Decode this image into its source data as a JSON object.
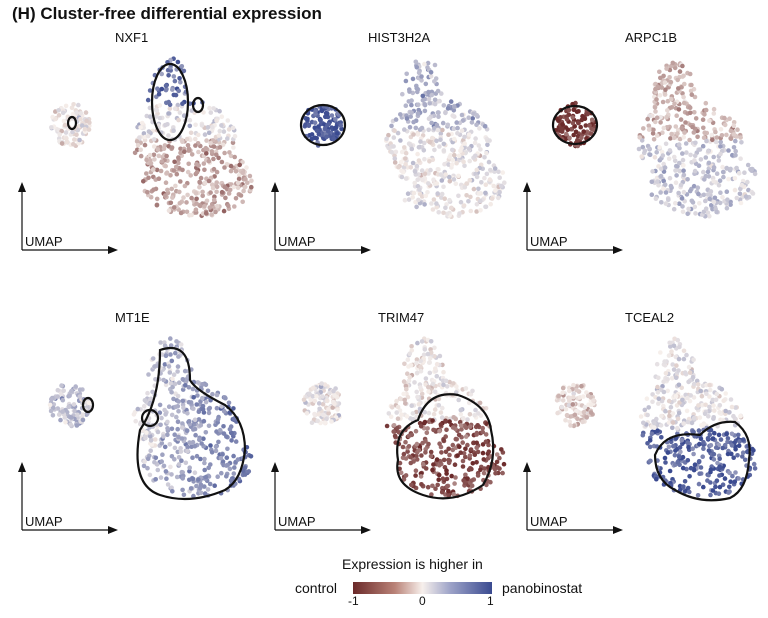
{
  "title": "(H) Cluster-free differential expression",
  "chart_data": {
    "type": "scatter",
    "axis_label": "UMAP",
    "panels": [
      {
        "gene": "NXF1"
      },
      {
        "gene": "HIST3H2A"
      },
      {
        "gene": "ARPC1B"
      },
      {
        "gene": "MT1E"
      },
      {
        "gene": "TRIM47"
      },
      {
        "gene": "TCEAL2"
      }
    ],
    "legend": {
      "title": "Expression is higher in",
      "low_label": "control",
      "high_label": "panobinostat",
      "ticks": [
        "-1",
        "0",
        "1"
      ],
      "range": [
        -1,
        1
      ],
      "colors": {
        "low": "#6b2a2a",
        "mid": "#f7f0ec",
        "high": "#3a4a90"
      }
    }
  }
}
